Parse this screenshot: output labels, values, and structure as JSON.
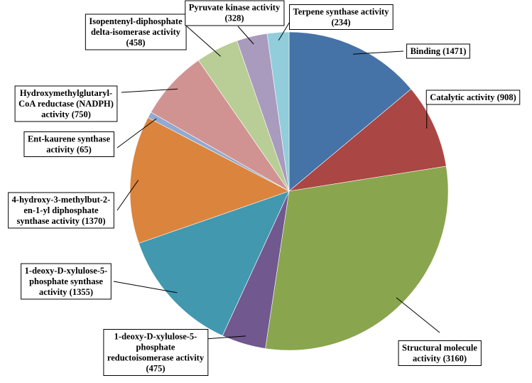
{
  "chart_data": {
    "type": "pie",
    "start_angle_deg": 0,
    "direction": "clockwise",
    "slices": [
      {
        "label": "Binding  (1471)",
        "lines": [
          "Binding  (1471)"
        ],
        "value": 1471,
        "color": "#4572A7"
      },
      {
        "label": "Catalytic activity  (908)",
        "lines": [
          "Catalytic activity  (908)"
        ],
        "value": 908,
        "color": "#AA4643"
      },
      {
        "label": "Structural molecule activity  (3160)",
        "lines": [
          "Structural molecule",
          "activity   (3160)"
        ],
        "value": 3160,
        "color": "#89A54E"
      },
      {
        "label": "1-deoxy-D-xylulose-5-phosphate reductoisomerase activity (475)",
        "lines": [
          "1-deoxy-D-xylulose-5-",
          "phosphate",
          "reductoisomerase activity",
          "(475)"
        ],
        "value": 475,
        "color": "#71588F"
      },
      {
        "label": "1-deoxy-D-xylulose-5-phosphate synthase activity  (1355)",
        "lines": [
          "1-deoxy-D-xylulose-5-",
          "phosphate synthase",
          "activity  (1355)"
        ],
        "value": 1355,
        "color": "#4198AF"
      },
      {
        "label": "4-hydroxy-3-methylbut-2-en-1-yl diphosphate synthase activity  (1370)",
        "lines": [
          "4-hydroxy-3-methylbut-2-",
          "en-1-yl diphosphate",
          "synthase activity  (1370)"
        ],
        "value": 1370,
        "color": "#DB843D"
      },
      {
        "label": "Ent-kaurene synthase activity  (65)",
        "lines": [
          "Ent-kaurene synthase",
          "activity  (65)"
        ],
        "value": 65,
        "color": "#93A9CF"
      },
      {
        "label": "Hydroxymethylglutaryl-CoA reductase (NADPH) activity (750)",
        "lines": [
          "Hydroxymethylglutaryl-",
          "CoA reductase (NADPH)",
          "activity  (750)"
        ],
        "value": 750,
        "color": "#D19392"
      },
      {
        "label": "Isopentenyl-diphosphate delta-isomerase activity  (458)",
        "lines": [
          "Isopentenyl-diphosphate",
          "delta-isomerase activity",
          "(458)"
        ],
        "value": 458,
        "color": "#B9CD96"
      },
      {
        "label": "Pyruvate kinase activity  (328)",
        "lines": [
          "Pyruvate kinase activity",
          "(328)"
        ],
        "value": 328,
        "color": "#A99BBD"
      },
      {
        "label": "Terpene synthase activity  (234)",
        "lines": [
          "Terpene synthase activity",
          "(234)"
        ],
        "value": 234,
        "color": "#92CDDC"
      }
    ]
  }
}
